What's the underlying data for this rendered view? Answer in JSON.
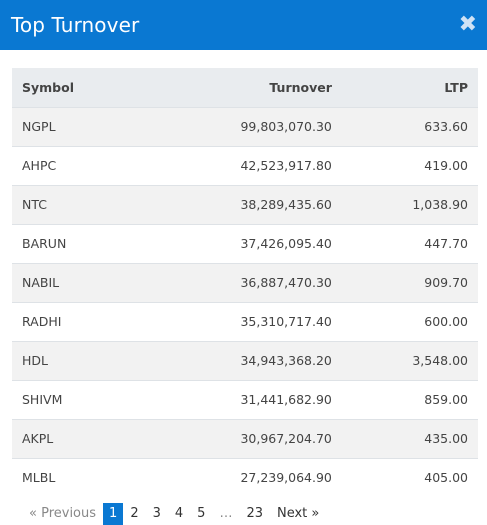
{
  "header": {
    "title": "Top Turnover",
    "close_glyph": "✖"
  },
  "table": {
    "columns": [
      "Symbol",
      "Turnover",
      "LTP"
    ],
    "rows": [
      {
        "symbol": "NGPL",
        "turnover": "99,803,070.30",
        "ltp": "633.60"
      },
      {
        "symbol": "AHPC",
        "turnover": "42,523,917.80",
        "ltp": "419.00"
      },
      {
        "symbol": "NTC",
        "turnover": "38,289,435.60",
        "ltp": "1,038.90"
      },
      {
        "symbol": "BARUN",
        "turnover": "37,426,095.40",
        "ltp": "447.70"
      },
      {
        "symbol": "NABIL",
        "turnover": "36,887,470.30",
        "ltp": "909.70"
      },
      {
        "symbol": "RADHI",
        "turnover": "35,310,717.40",
        "ltp": "600.00"
      },
      {
        "symbol": "HDL",
        "turnover": "34,943,368.20",
        "ltp": "3,548.00"
      },
      {
        "symbol": "SHIVM",
        "turnover": "31,441,682.90",
        "ltp": "859.00"
      },
      {
        "symbol": "AKPL",
        "turnover": "30,967,204.70",
        "ltp": "435.00"
      },
      {
        "symbol": "MLBL",
        "turnover": "27,239,064.90",
        "ltp": "405.00"
      }
    ]
  },
  "pagination": {
    "previous": "« Previous",
    "pages": [
      "1",
      "2",
      "3",
      "4",
      "5"
    ],
    "ellipsis": "…",
    "last": "23",
    "next": "Next »",
    "active_page": "1"
  },
  "colors": {
    "accent": "#0a78d2",
    "header_row": "#e9ecef",
    "stripe": "#f2f2f2"
  }
}
